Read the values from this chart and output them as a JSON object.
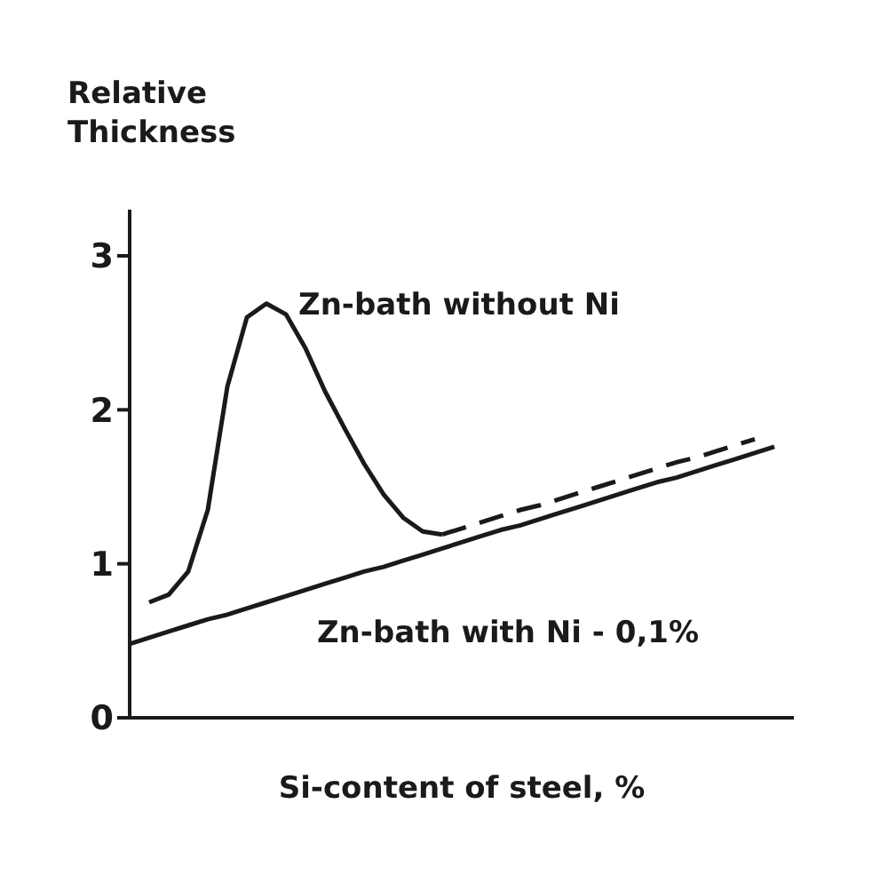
{
  "chart_data": {
    "type": "line",
    "xlabel": "Si-content of steel, %",
    "ylabel": "Relative Thickness",
    "categories": [
      null,
      null,
      null,
      null,
      null,
      null,
      null,
      null,
      null,
      null,
      null,
      null,
      null,
      null,
      null,
      null,
      null,
      null,
      null,
      null,
      null,
      null,
      null,
      null,
      null,
      null,
      null,
      null,
      null,
      null,
      null,
      null,
      null,
      null,
      null
    ],
    "ylim": [
      0,
      3.3
    ],
    "yticks": [
      0,
      1,
      2,
      3
    ],
    "marker": "none",
    "series": [
      {
        "name": "Zn-bath without Ni",
        "color": "#1a1a1a",
        "line_style": "solid",
        "values": [
          null,
          0.75,
          0.8,
          0.95,
          1.35,
          2.15,
          2.6,
          2.69,
          2.62,
          2.4,
          2.12,
          1.88,
          1.65,
          1.45,
          1.3,
          1.21,
          1.19,
          null,
          null,
          null,
          null,
          null,
          null,
          null,
          null,
          null,
          null,
          null,
          null,
          null,
          null,
          null,
          null,
          null,
          null
        ]
      },
      {
        "color": "#1a1a1a",
        "line_style": "dashed",
        "values": [
          null,
          null,
          null,
          null,
          null,
          null,
          null,
          null,
          null,
          null,
          null,
          null,
          null,
          null,
          null,
          null,
          1.19,
          1.23,
          1.27,
          1.31,
          1.35,
          1.38,
          1.42,
          1.46,
          1.5,
          1.54,
          1.58,
          1.62,
          1.66,
          1.69,
          1.73,
          1.77,
          1.81,
          null,
          null
        ]
      },
      {
        "name": "Zn-bath with Ni - 0,1%",
        "color": "#1a1a1a",
        "line_style": "solid",
        "values": [
          0.48,
          0.52,
          0.56,
          0.6,
          0.64,
          0.67,
          0.71,
          0.75,
          0.79,
          0.83,
          0.87,
          0.91,
          0.95,
          0.98,
          1.02,
          1.06,
          1.1,
          1.14,
          1.18,
          1.22,
          1.25,
          1.29,
          1.33,
          1.37,
          1.41,
          1.45,
          1.49,
          1.53,
          1.56,
          1.6,
          1.64,
          1.68,
          1.72,
          1.76,
          null
        ]
      }
    ]
  }
}
